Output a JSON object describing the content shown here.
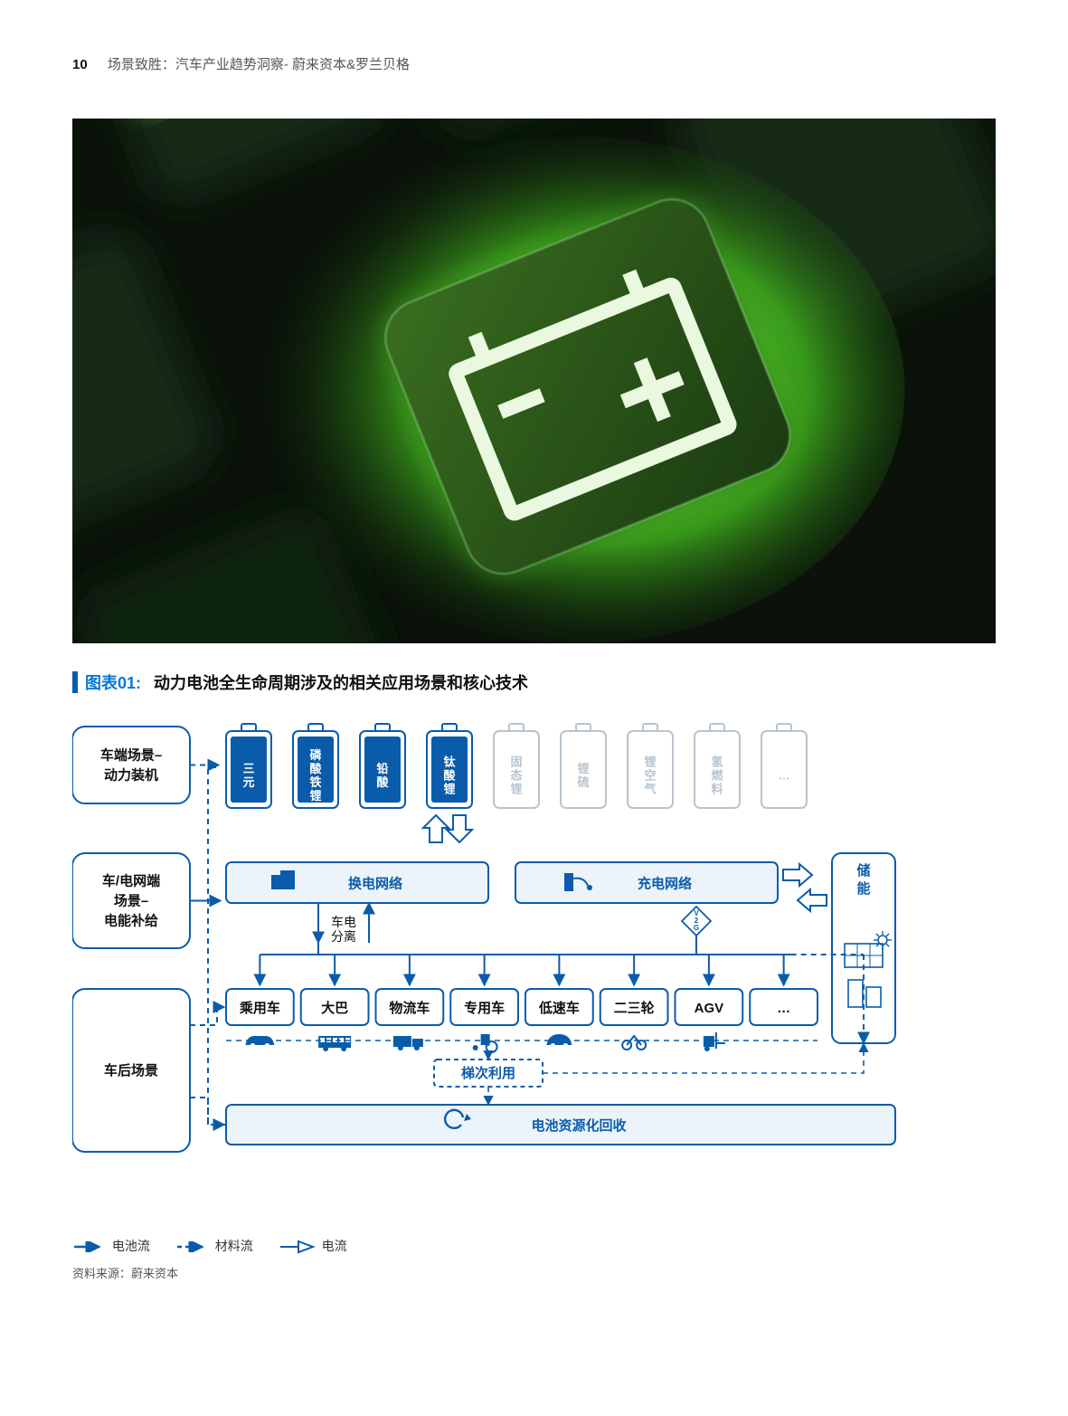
{
  "header": {
    "page_number": "10",
    "running_title": "场景致胜：汽车产业趋势洞察- 蔚来资本&罗兰贝格"
  },
  "hero": {
    "description": "Backlit green battery key icon on dark keypad"
  },
  "figure": {
    "label": "图表01",
    "title": "动力电池全生命周期涉及的相关应用场景和核心技术",
    "colors": {
      "primary": "#0a5caa",
      "light_fill": "#ecf3fa",
      "inactive": "#b8c4cf",
      "text": "#111111",
      "hero_green": "#59c92f"
    },
    "left_categories": [
      {
        "line1": "车端场景–",
        "line2": "动力装机"
      },
      {
        "line1": "车/电网端",
        "line2": "场景–",
        "line3": "电能补给"
      },
      {
        "line1": "车后场景"
      }
    ],
    "battery_types": [
      {
        "label": "三元",
        "active": true
      },
      {
        "label": "磷酸铁锂",
        "active": true
      },
      {
        "label": "铅酸",
        "active": true
      },
      {
        "label": "钛酸锂",
        "active": true
      },
      {
        "label": "固态锂",
        "active": false
      },
      {
        "label": "锂硫",
        "active": false
      },
      {
        "label": "锂空气",
        "active": false
      },
      {
        "label": "氢燃料",
        "active": false
      },
      {
        "label": "…",
        "active": false
      }
    ],
    "networks": [
      {
        "label": "换电网络",
        "icon": "swap-station"
      },
      {
        "label": "充电网络",
        "icon": "charger"
      }
    ],
    "sub_label_between_networks": "车电\n分离",
    "v2g_label": "V\n2\nG",
    "storage": {
      "label": "储能",
      "icons": [
        "solar-panel",
        "storage-unit"
      ]
    },
    "vehicles": [
      "乘用车",
      "大巴",
      "物流车",
      "专用车",
      "低速车",
      "二三轮",
      "AGV",
      "…"
    ],
    "vehicle_icons": [
      "car",
      "bus",
      "truck",
      "tractor",
      "small-car",
      "motorcycle",
      "forklift",
      "none"
    ],
    "cascade_label": "梯次利用",
    "recycle_label": "电池资源化回收",
    "legend": {
      "solid": "电池流",
      "dashed": "材料流",
      "hollow": "电流"
    },
    "source": "资料来源：蔚来资本"
  }
}
